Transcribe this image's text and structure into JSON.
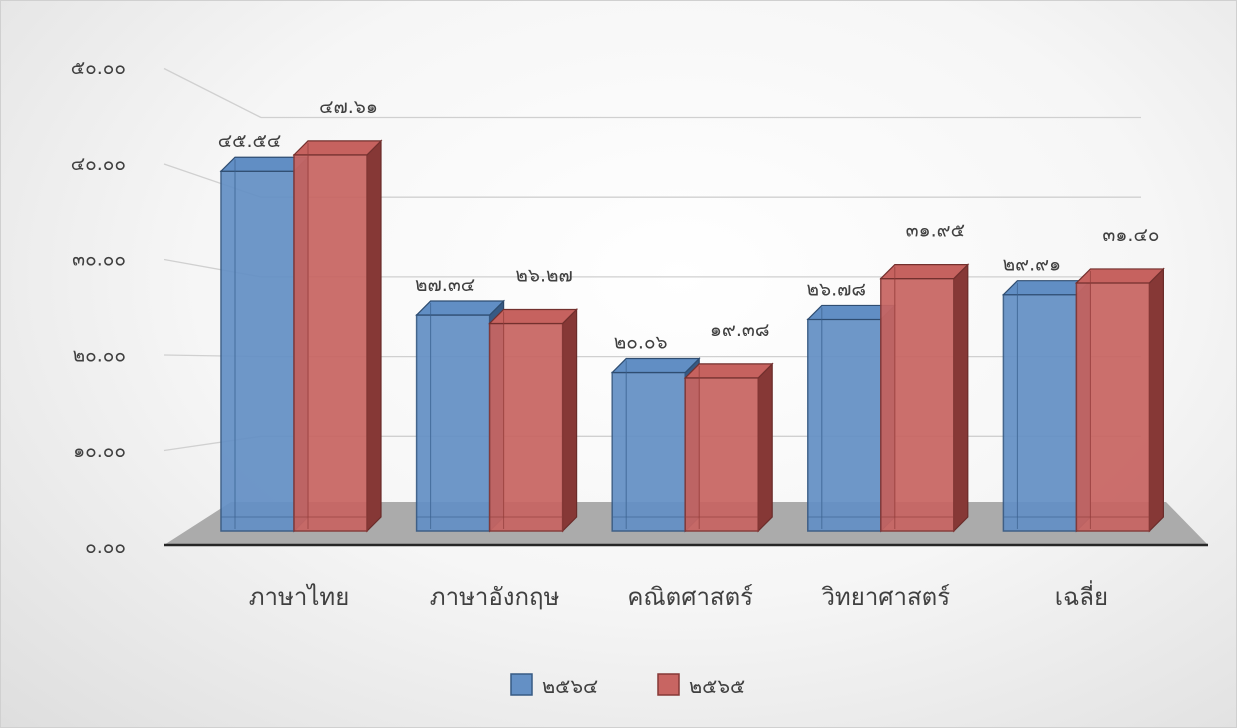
{
  "chart_data": {
    "type": "bar",
    "title": "",
    "xlabel": "",
    "ylabel": "",
    "categories": [
      "ภาษาไทย",
      "ภาษาอังกฤษ",
      "คณิตศาสตร์",
      "วิทยาศาสตร์",
      "เฉลี่ย"
    ],
    "series": [
      {
        "name": "๒๕๖๔",
        "color": "#4f81bd",
        "values": [
          45.54,
          27.34,
          20.06,
          26.78,
          29.91
        ],
        "labels": [
          "๔๕.๕๔",
          "๒๗.๓๔",
          "๒๐.๐๖",
          "๒๖.๗๘",
          "๒๙.๙๑"
        ]
      },
      {
        "name": "๒๕๖๕",
        "color": "#c0504d",
        "values": [
          47.61,
          26.27,
          19.38,
          31.95,
          31.4
        ],
        "labels": [
          "๔๗.๖๑",
          "๒๖.๒๗",
          "๑๙.๓๘",
          "๓๑.๙๕",
          "๓๑.๔๐"
        ]
      }
    ],
    "ylim": [
      0,
      50
    ],
    "yticks": [
      0,
      10,
      20,
      30,
      40,
      50
    ],
    "ytick_labels": [
      "๐.๐๐",
      "๑๐.๐๐",
      "๒๐.๐๐",
      "๓๐.๐๐",
      "๔๐.๐๐",
      "๕๐.๐๐"
    ],
    "grid": true,
    "three_d": true,
    "legend_position": "bottom"
  }
}
